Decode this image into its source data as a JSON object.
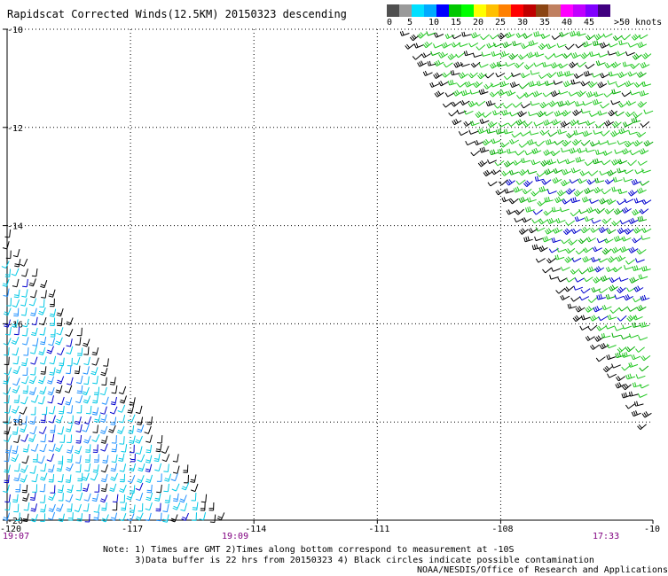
{
  "title": "Rapidscat Corrected Winds(12.5KM) 20150323 descending",
  "legend": {
    "labels": [
      "0",
      "5",
      "10",
      "15",
      "20",
      "25",
      "30",
      "35",
      "40",
      "45",
      ">50 knots"
    ],
    "colors": [
      "#505050",
      "#9a9a9a",
      "#00e0ff",
      "#00aaff",
      "#0000ff",
      "#00c800",
      "#00ff00",
      "#ffff00",
      "#ffc000",
      "#ff8000",
      "#ff0000",
      "#c00000",
      "#8b4513",
      "#c08060",
      "#ff00ff",
      "#c000ff",
      "#8000ff",
      "#400080"
    ]
  },
  "axes": {
    "y_ticks": [
      "-10",
      "-12",
      "-14",
      "-16",
      "-18",
      "-20"
    ],
    "x_ticks": [
      "-120",
      "-117",
      "-114",
      "-111",
      "-108",
      "-10"
    ]
  },
  "times": {
    "left": "19:07",
    "middle": "19:09",
    "right": "17:33"
  },
  "note": "Note: 1) Times are GMT 2)Times along bottom correspond to measurement at -10S\n      3)Data buffer is 22 hrs from 20150323 4) Black circles indicate possible contamination",
  "credit": "NOAA/NESDIS/Office of Research and Applications",
  "swaths": {
    "west": {
      "lat_range": [
        -20,
        -14
      ],
      "lon_range": [
        -120,
        -115.5
      ],
      "colors": [
        "#00c8e6",
        "#1e90ff",
        "#0000cd",
        "#000000"
      ]
    },
    "east": {
      "lat_range": [
        -18,
        -10
      ],
      "lon_range": [
        -111,
        -105
      ],
      "colors": [
        "#00c800",
        "#00b400",
        "#0000cd",
        "#000000"
      ]
    }
  }
}
